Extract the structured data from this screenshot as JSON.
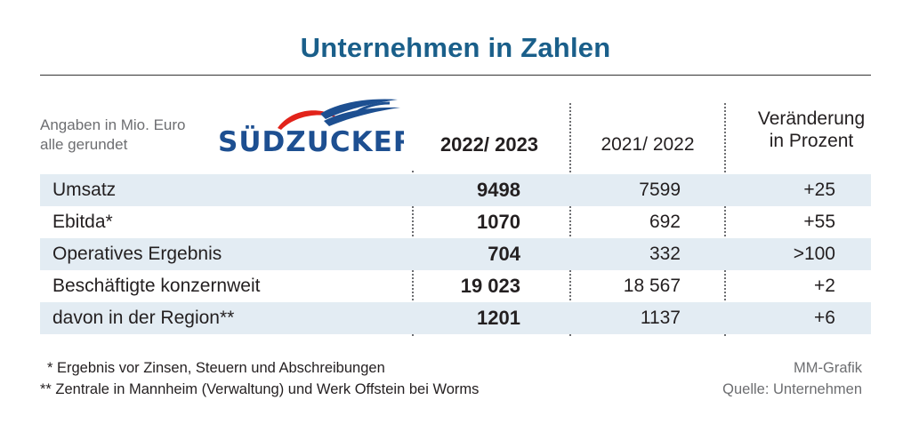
{
  "title": "Unternehmen in Zahlen",
  "note": {
    "line1": "Angaben in Mio. Euro",
    "line2": "alle gerundet"
  },
  "logo": {
    "text": "SÜDZUCKER",
    "text_color": "#1d4f91",
    "swoosh_red": "#e2231a",
    "swoosh_blue": "#1d4f91"
  },
  "columns": {
    "current": "2022/ 2023",
    "previous": "2021/ 2022",
    "change_line1": "Veränderung",
    "change_line2": "in Prozent"
  },
  "chart_data": {
    "type": "table",
    "title": "Unternehmen in Zahlen",
    "columns": [
      "2022/ 2023",
      "2021/ 2022",
      "Veränderung in Prozent"
    ],
    "rows": [
      {
        "label": "Umsatz",
        "current": "9498",
        "previous": "7599",
        "change": "+25"
      },
      {
        "label": "Ebitda*",
        "current": "1070",
        "previous": "692",
        "change": "+55"
      },
      {
        "label": "Operatives Ergebnis",
        "current": "704",
        "previous": "332",
        "change": ">100"
      },
      {
        "label": "Beschäftigte konzernweit",
        "current": "19 023",
        "previous": "18 567",
        "change": "+2"
      },
      {
        "label": "davon in der Region**",
        "current": "1201",
        "previous": "1137",
        "change": "+6"
      }
    ]
  },
  "footnotes": {
    "f1": "* Ergebnis vor Zinsen, Steuern und Abschreibungen",
    "f2": "** Zentrale in Mannheim (Verwaltung) und Werk Offstein bei Worms"
  },
  "credits": {
    "graphic": "MM-Grafik",
    "source": "Quelle: Unternehmen"
  },
  "colors": {
    "title": "#1a5f8a",
    "row_shade": "#e3ecf3",
    "muted": "#6d6e71"
  }
}
